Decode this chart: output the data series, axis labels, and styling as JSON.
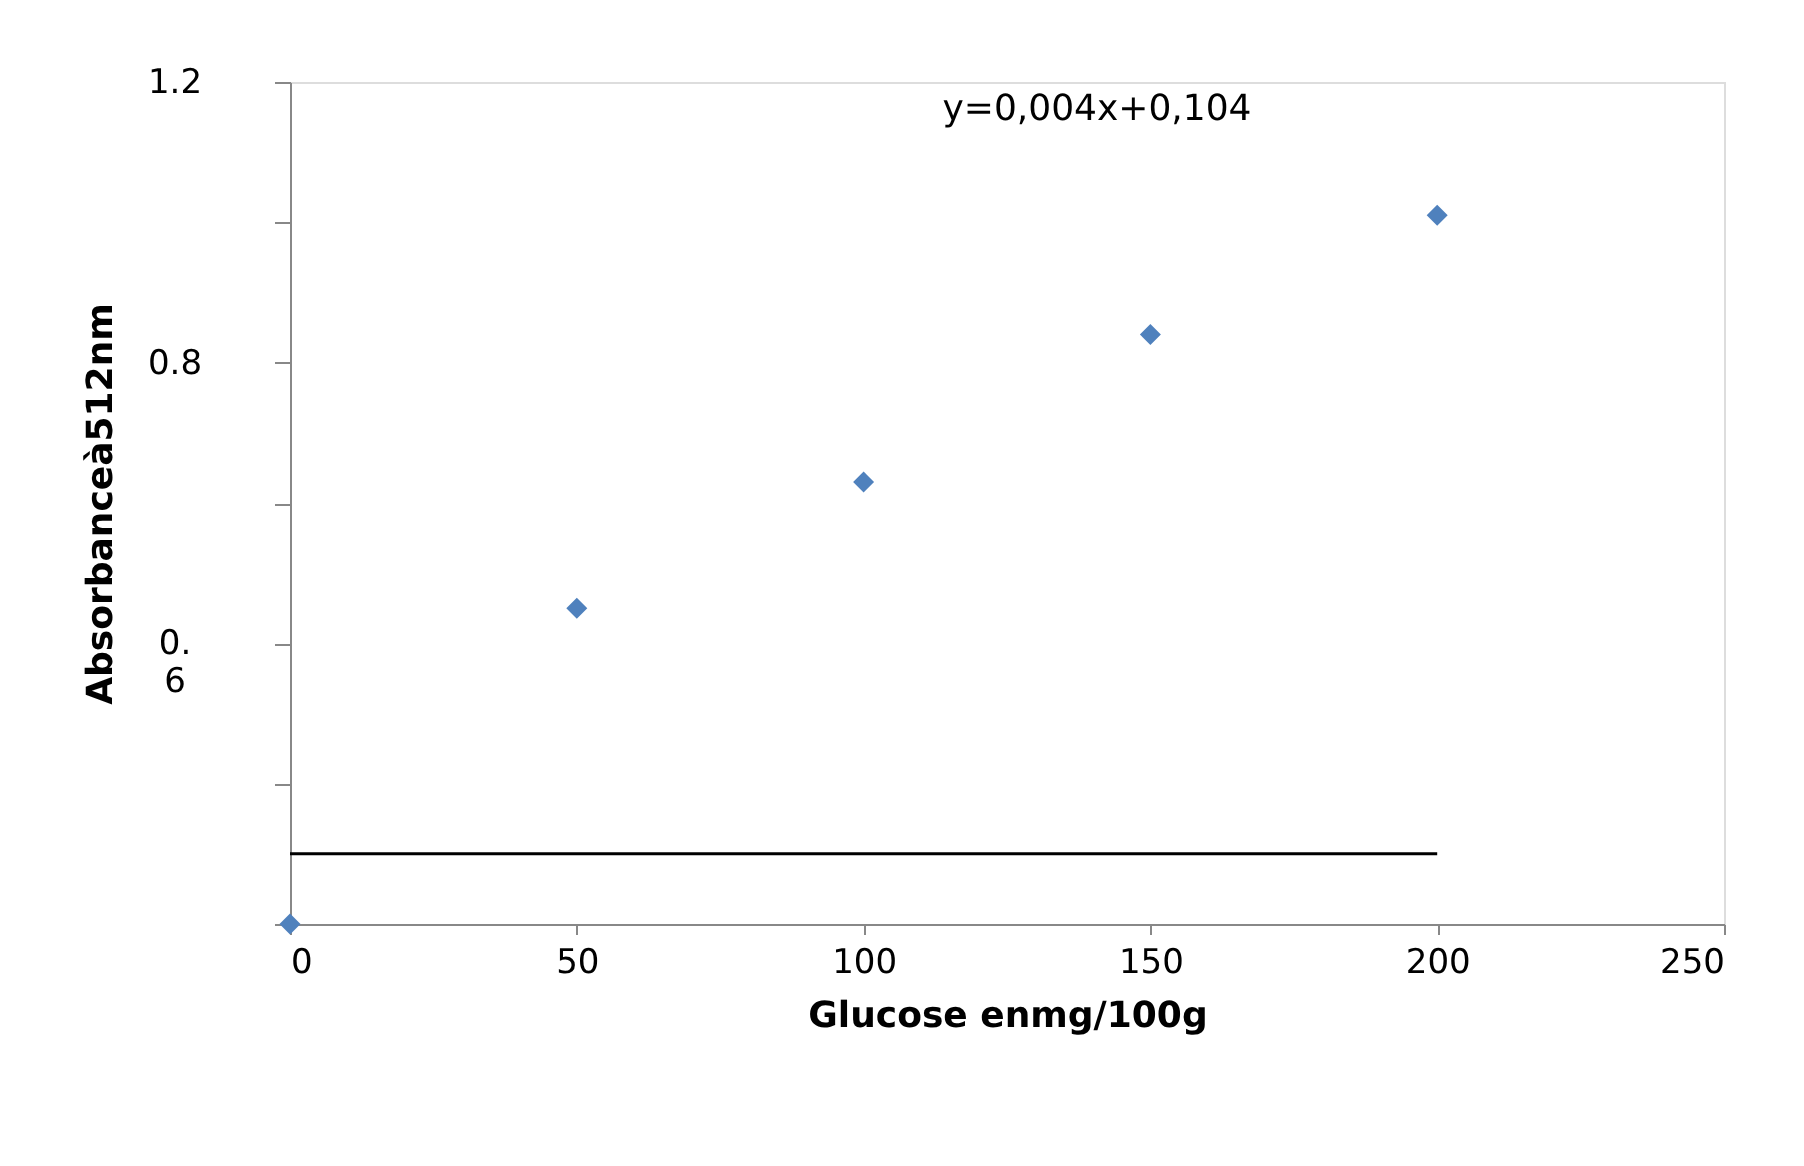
{
  "chart_data": {
    "type": "scatter",
    "xlabel": "Glucose enmg/100g",
    "ylabel": "Absorbanceà512nm",
    "x": [
      0,
      50,
      100,
      150,
      200
    ],
    "series": [
      {
        "color": "#4f81bd",
        "marker": "diamond",
        "values": [
          0,
          0.45,
          0.63,
          0.84,
          1.01
        ]
      },
      {
        "type": "line",
        "color": "#000000",
        "x": [
          0,
          200
        ],
        "values": [
          0.1,
          0.1
        ],
        "line_style": "solid"
      }
    ],
    "annotations": [
      "y=0,004x+0,104"
    ],
    "xlim": [
      0,
      250
    ],
    "xticks": [
      0,
      50,
      100,
      150,
      200,
      250
    ],
    "ylim": [
      0,
      1.2
    ],
    "yticks": [
      {
        "value": 0,
        "label": null
      },
      {
        "value": 0.2,
        "label": null
      },
      {
        "value": 0.4,
        "label": "0. 6"
      },
      {
        "value": 0.6,
        "label": null
      },
      {
        "value": 0.8,
        "label": "0.8"
      },
      {
        "value": 1.0,
        "label": null
      },
      {
        "value": 1.2,
        "label": "1.2"
      }
    ],
    "grid": false
  }
}
